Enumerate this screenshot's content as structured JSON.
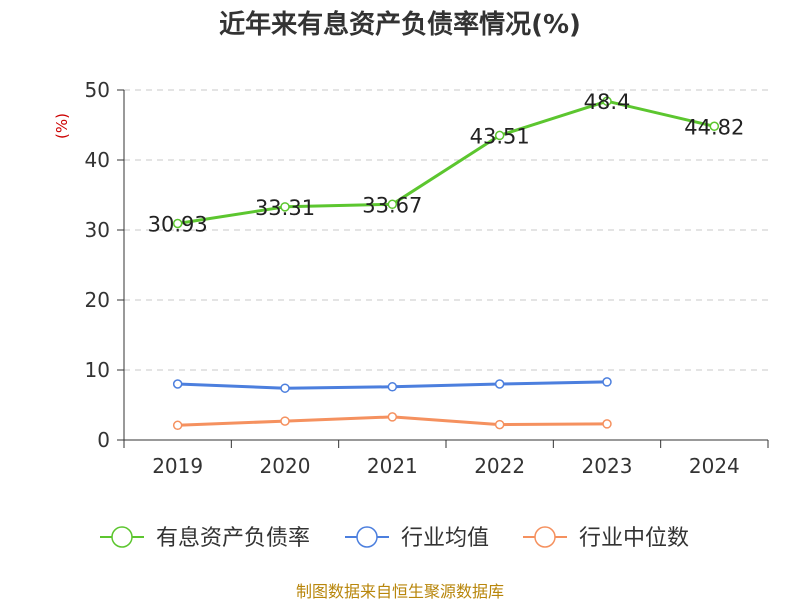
{
  "chart_data": {
    "type": "line",
    "title": "近年来有息资产负债率情况(%)",
    "ylabel": "(%)",
    "xlabel": "",
    "categories": [
      "2019",
      "2020",
      "2021",
      "2022",
      "2023",
      "2024"
    ],
    "ylim": [
      0,
      50
    ],
    "yticks": [
      0,
      10,
      20,
      30,
      40,
      50
    ],
    "grid": true,
    "legend_position": "bottom",
    "series": [
      {
        "name": "有息资产负债率",
        "color": "#5cc62f",
        "values": [
          30.93,
          33.31,
          33.67,
          43.51,
          48.4,
          44.82
        ],
        "labels": [
          "30.93",
          "33.31",
          "33.67",
          "43.51",
          "48.4",
          "44.82"
        ]
      },
      {
        "name": "行业均值",
        "color": "#4c7fde",
        "values": [
          8.0,
          7.4,
          7.6,
          8.0,
          8.3,
          null
        ]
      },
      {
        "name": "行业中位数",
        "color": "#f5915f",
        "values": [
          2.1,
          2.7,
          3.3,
          2.2,
          2.3,
          null
        ]
      }
    ]
  },
  "source": "制图数据来自恒生聚源数据库"
}
